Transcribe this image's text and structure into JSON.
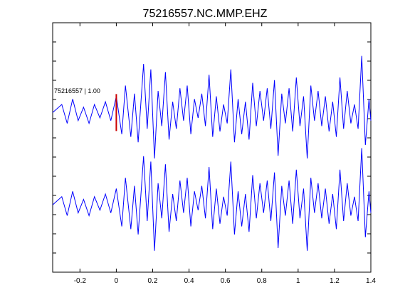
{
  "chart_data": {
    "type": "line",
    "title": "75216557.NC.MMP.EHZ",
    "xlabel": "",
    "ylabel": "",
    "xlim": [
      -0.35,
      1.4
    ],
    "x_ticks": [
      -0.2,
      0,
      0.2,
      0.4,
      0.6,
      0.8,
      1,
      1.2,
      1.4
    ],
    "x_tick_labels": [
      "-0.2",
      "0",
      "0.2",
      "0.4",
      "0.6",
      "0.8",
      "1",
      "1.2",
      "1.4"
    ],
    "y_tick_count": 12,
    "grid": false,
    "series_color": "#0000ff",
    "pick_color": "#cc0000",
    "pick_time": 0,
    "trace_label": "75216557 | 1.00",
    "x": [
      -0.35,
      -0.3,
      -0.27,
      -0.24,
      -0.21,
      -0.18,
      -0.15,
      -0.12,
      -0.09,
      -0.06,
      -0.03,
      0,
      0.03,
      0.05,
      0.08,
      0.1,
      0.12,
      0.15,
      0.17,
      0.19,
      0.21,
      0.23,
      0.25,
      0.27,
      0.29,
      0.31,
      0.33,
      0.35,
      0.37,
      0.39,
      0.41,
      0.43,
      0.45,
      0.47,
      0.49,
      0.51,
      0.53,
      0.55,
      0.57,
      0.59,
      0.61,
      0.63,
      0.65,
      0.67,
      0.69,
      0.71,
      0.73,
      0.75,
      0.77,
      0.79,
      0.81,
      0.83,
      0.85,
      0.87,
      0.89,
      0.91,
      0.93,
      0.95,
      0.97,
      0.99,
      1.01,
      1.03,
      1.05,
      1.07,
      1.09,
      1.11,
      1.13,
      1.15,
      1.17,
      1.19,
      1.21,
      1.23,
      1.25,
      1.27,
      1.29,
      1.31,
      1.33,
      1.35,
      1.37,
      1.39,
      1.4
    ],
    "series": [
      {
        "values": [
          0,
          0.3,
          -0.4,
          0.5,
          -0.3,
          0.2,
          -0.4,
          0.3,
          -0.2,
          0.4,
          -0.3,
          0.6,
          -0.8,
          1.0,
          -0.9,
          0.7,
          -1.1,
          1.8,
          -0.6,
          1.6,
          -1.7,
          0.8,
          -0.5,
          1.5,
          -1.0,
          0.4,
          -0.6,
          0.9,
          -0.3,
          1.0,
          -0.8,
          0.5,
          -0.2,
          0.7,
          -0.5,
          1.4,
          -0.9,
          0.6,
          -0.7,
          0.3,
          -0.4,
          1.6,
          -1.1,
          0.5,
          -0.8,
          0.4,
          -1.0,
          1.1,
          -0.5,
          0.8,
          -0.3,
          0.9,
          -0.6,
          1.2,
          -1.6,
          0.7,
          -0.4,
          0.9,
          -0.7,
          1.3,
          -0.5,
          0.6,
          -1.7,
          1.0,
          -0.3,
          0.8,
          -0.5,
          0.6,
          -0.7,
          0.4,
          -0.9,
          1.3,
          -0.6,
          0.8,
          -0.4,
          0.3,
          -0.6,
          2.1,
          -1.2,
          0.5,
          -0.3
        ]
      },
      {
        "values": [
          0,
          0.3,
          -0.4,
          0.5,
          -0.3,
          0.2,
          -0.4,
          0.3,
          -0.2,
          0.4,
          -0.3,
          0.6,
          -0.8,
          1.0,
          -0.9,
          0.7,
          -1.1,
          1.8,
          -0.6,
          1.6,
          -1.7,
          0.8,
          -0.5,
          1.5,
          -1.0,
          0.4,
          -0.6,
          0.9,
          -0.3,
          1.0,
          -0.8,
          0.5,
          -0.2,
          0.7,
          -0.5,
          1.4,
          -0.9,
          0.6,
          -0.7,
          0.3,
          -0.4,
          1.6,
          -1.1,
          0.5,
          -0.8,
          0.4,
          -1.0,
          1.1,
          -0.5,
          0.8,
          -0.3,
          0.9,
          -0.6,
          1.2,
          -1.6,
          0.7,
          -0.4,
          0.9,
          -0.7,
          1.3,
          -0.5,
          0.6,
          -1.7,
          1.0,
          -0.3,
          0.8,
          -0.5,
          0.6,
          -0.7,
          0.4,
          -0.9,
          1.3,
          -0.6,
          0.8,
          -0.4,
          0.3,
          -0.6,
          2.1,
          -1.2,
          0.5,
          -0.3
        ]
      }
    ]
  }
}
